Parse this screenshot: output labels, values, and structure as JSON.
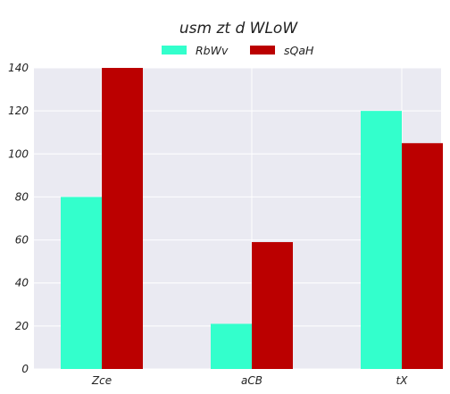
{
  "chart_data": {
    "type": "bar",
    "title": "usm zt d WLoW",
    "categories": [
      "Zce",
      "aCB",
      "tX"
    ],
    "series": [
      {
        "name": "RbWv",
        "values": [
          80,
          21,
          120
        ],
        "color": "#33ffcc"
      },
      {
        "name": "sQaH",
        "values": [
          140,
          59,
          105
        ],
        "color": "#bb0000"
      }
    ],
    "ylim": [
      0,
      140
    ],
    "yticks": [
      0,
      20,
      40,
      60,
      80,
      100,
      120,
      140
    ],
    "xlabel": "",
    "ylabel": "",
    "grid": true,
    "legend_position": "top-center",
    "background_color": "#eaeaf2",
    "grid_color": "#ffffff"
  }
}
